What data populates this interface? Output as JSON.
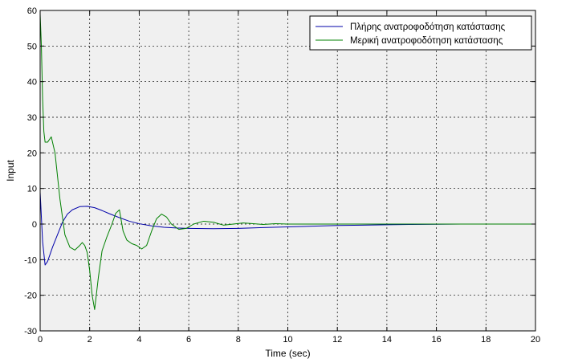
{
  "chart_data": {
    "type": "line",
    "title": "",
    "xlabel": "Time (sec)",
    "ylabel": "Input",
    "xlim": [
      0,
      20
    ],
    "ylim": [
      -30,
      60
    ],
    "xticks": [
      0,
      2,
      4,
      6,
      8,
      10,
      12,
      14,
      16,
      18,
      20
    ],
    "yticks": [
      -30,
      -20,
      -10,
      0,
      10,
      20,
      30,
      40,
      50,
      60
    ],
    "grid": true,
    "legend_position": "top-right",
    "series": [
      {
        "name": "Πλήρης ανατροφοδότηση κατάστασης",
        "color": "#0000aa",
        "x": [
          0,
          0.05,
          0.1,
          0.2,
          0.3,
          0.5,
          0.7,
          0.9,
          1.1,
          1.3,
          1.6,
          1.9,
          2.2,
          2.5,
          2.8,
          3.2,
          3.6,
          4,
          4.5,
          5,
          5.5,
          6,
          7,
          8,
          9,
          10,
          11,
          12,
          13,
          14,
          15,
          16,
          17,
          18,
          19,
          20
        ],
        "y": [
          9,
          2,
          -5,
          -11.5,
          -10.5,
          -6.5,
          -3,
          0.5,
          2.8,
          4,
          4.9,
          5,
          4.6,
          3.8,
          2.9,
          1.8,
          0.8,
          0.1,
          -0.5,
          -0.9,
          -1.1,
          -1.2,
          -1.3,
          -1.2,
          -1,
          -0.8,
          -0.6,
          -0.4,
          -0.3,
          -0.2,
          -0.1,
          -0.05,
          0,
          0,
          0,
          0
        ]
      },
      {
        "name": "Μερική ανατροφοδότηση κατάστασης",
        "color": "#008000",
        "x": [
          0,
          0.05,
          0.1,
          0.15,
          0.2,
          0.3,
          0.45,
          0.6,
          0.8,
          1,
          1.2,
          1.4,
          1.6,
          1.7,
          1.8,
          1.9,
          2,
          2.1,
          2.2,
          2.35,
          2.5,
          2.7,
          2.9,
          3.05,
          3.2,
          3.35,
          3.5,
          3.7,
          3.9,
          4.1,
          4.3,
          4.5,
          4.7,
          4.9,
          5.1,
          5.3,
          5.6,
          5.9,
          6.2,
          6.6,
          7,
          7.4,
          7.8,
          8.2,
          8.6,
          9,
          9.5,
          10,
          11,
          12,
          13,
          14,
          15,
          16,
          17,
          18,
          19,
          20
        ],
        "y": [
          59,
          50,
          35,
          26,
          23,
          23,
          24.5,
          20,
          7,
          -3,
          -6.5,
          -7.3,
          -6,
          -5.2,
          -6,
          -8,
          -13,
          -20,
          -24,
          -15,
          -7.5,
          -3.5,
          0,
          3,
          4,
          -2,
          -4.5,
          -5.5,
          -6,
          -7,
          -6,
          -2,
          1.5,
          2.8,
          2,
          0,
          -1.5,
          -1.2,
          0,
          0.8,
          0.5,
          -0.3,
          0,
          0.3,
          0.1,
          -0.1,
          0.1,
          0,
          0,
          0,
          0,
          0,
          0,
          0,
          0,
          0,
          0,
          0
        ]
      }
    ]
  }
}
